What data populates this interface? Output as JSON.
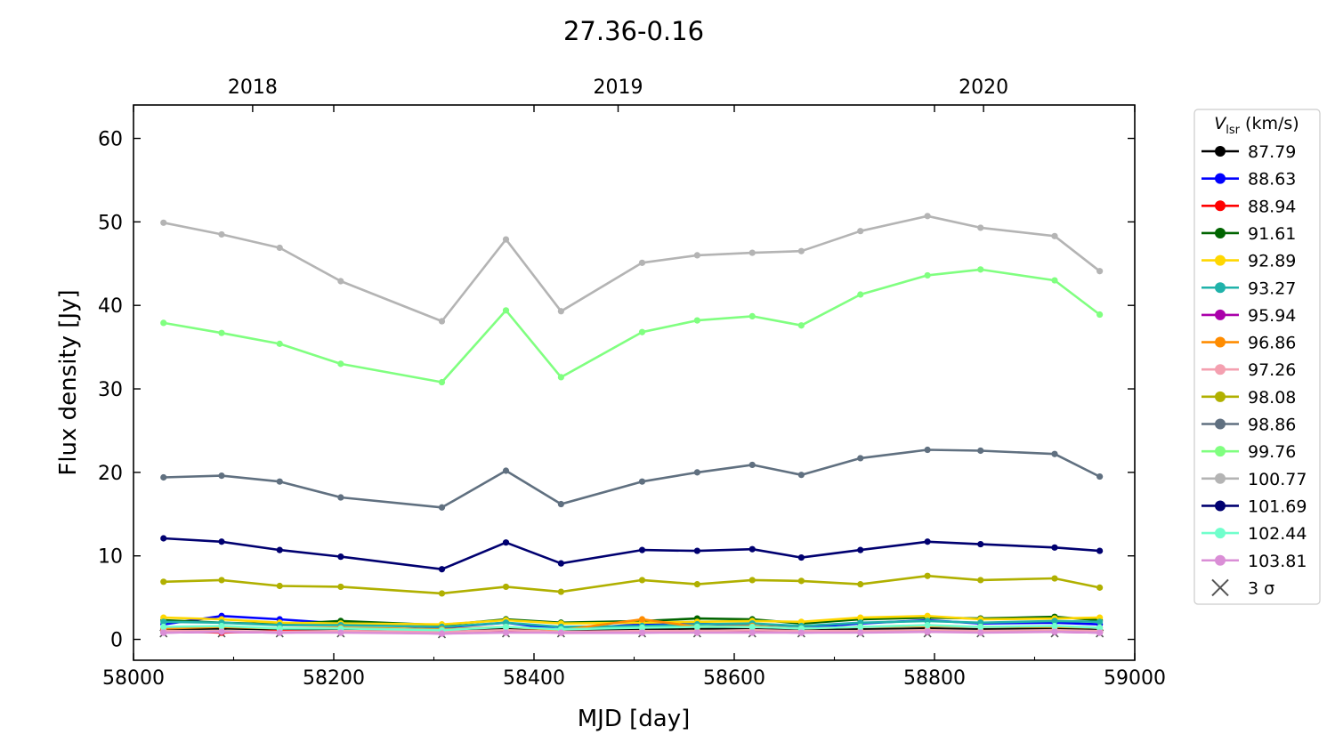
{
  "chart_data": {
    "type": "line",
    "title": "27.36-0.16",
    "xlabel": "MJD [day]",
    "ylabel": "Flux density [Jy]",
    "xlim": [
      58000,
      59000
    ],
    "ylim": [
      -2.5,
      64
    ],
    "xticks": [
      58000,
      58200,
      58400,
      58600,
      58800,
      59000
    ],
    "xtick_labels": [
      "58000",
      "58200",
      "58400",
      "58600",
      "58800",
      "59000"
    ],
    "yticks": [
      0,
      10,
      20,
      30,
      40,
      50,
      60
    ],
    "ytick_labels": [
      "0",
      "10",
      "20",
      "30",
      "40",
      "50",
      "60"
    ],
    "top_axis": {
      "ticks": [
        58119,
        58484,
        58849
      ],
      "labels": [
        "2018",
        "2019",
        "2020"
      ]
    },
    "grid": false,
    "legend": {
      "position": "outside-right",
      "title_main": "V",
      "title_sub": "lsr",
      "title_unit": " (km/s)",
      "sigma_label": "3 σ"
    },
    "x": [
      58030,
      58088,
      58146,
      58207,
      58308,
      58372,
      58427,
      58508,
      58563,
      58618,
      58667,
      58726,
      58793,
      58846,
      58920,
      58965
    ],
    "series": [
      {
        "name": "87.79",
        "color": "#000000",
        "values": [
          1.2,
          1.3,
          1.2,
          1.2,
          1.0,
          1.3,
          1.0,
          1.2,
          1.3,
          1.2,
          1.1,
          1.2,
          1.3,
          1.2,
          1.3,
          1.1
        ]
      },
      {
        "name": "88.63",
        "color": "#0000ff",
        "values": [
          1.8,
          2.8,
          2.4,
          1.9,
          1.4,
          2.0,
          1.2,
          1.8,
          1.9,
          1.6,
          1.4,
          1.9,
          2.3,
          1.9,
          2.0,
          1.8
        ]
      },
      {
        "name": "88.94",
        "color": "#ff0000",
        "values": [
          1.0,
          0.8,
          1.0,
          0.9,
          0.8,
          1.0,
          0.8,
          0.9,
          1.0,
          1.0,
          0.9,
          0.9,
          0.9,
          1.0,
          1.0,
          0.9
        ]
      },
      {
        "name": "91.61",
        "color": "#006400",
        "values": [
          2.3,
          2.0,
          1.8,
          2.2,
          1.7,
          2.4,
          2.0,
          2.2,
          2.5,
          2.4,
          1.9,
          2.4,
          2.6,
          2.5,
          2.7,
          2.3
        ]
      },
      {
        "name": "92.89",
        "color": "#ffd700",
        "values": [
          2.6,
          2.4,
          2.0,
          1.9,
          1.8,
          2.3,
          1.9,
          2.0,
          2.1,
          2.2,
          2.1,
          2.6,
          2.8,
          2.4,
          2.5,
          2.6
        ]
      },
      {
        "name": "93.27",
        "color": "#20b2aa",
        "values": [
          2.1,
          2.0,
          1.7,
          1.7,
          1.5,
          2.0,
          1.5,
          1.6,
          1.8,
          1.9,
          1.6,
          2.0,
          2.2,
          2.0,
          2.2,
          2.1
        ]
      },
      {
        "name": "95.94",
        "color": "#aa00aa",
        "values": [
          0.8,
          0.9,
          0.8,
          0.9,
          0.7,
          0.9,
          0.8,
          0.8,
          0.9,
          0.9,
          0.8,
          0.9,
          0.9,
          0.9,
          0.9,
          0.8
        ]
      },
      {
        "name": "96.86",
        "color": "#ff8c00",
        "values": [
          1.3,
          1.5,
          1.3,
          1.4,
          1.2,
          1.5,
          1.1,
          2.4,
          1.5,
          1.6,
          1.3,
          1.5,
          1.6,
          1.5,
          1.5,
          1.4
        ]
      },
      {
        "name": "97.26",
        "color": "#f4a0b0",
        "values": [
          1.0,
          1.0,
          0.9,
          1.0,
          0.9,
          1.1,
          0.9,
          1.0,
          1.0,
          1.1,
          1.0,
          1.0,
          1.1,
          1.0,
          1.1,
          1.0
        ]
      },
      {
        "name": "98.08",
        "color": "#b0b000",
        "values": [
          6.9,
          7.1,
          6.4,
          6.3,
          5.5,
          6.3,
          5.7,
          7.1,
          6.6,
          7.1,
          7.0,
          6.6,
          7.6,
          7.1,
          7.3,
          6.2
        ]
      },
      {
        "name": "98.86",
        "color": "#607080",
        "values": [
          19.4,
          19.6,
          18.9,
          17.0,
          15.8,
          20.2,
          16.2,
          18.9,
          20.0,
          20.9,
          19.7,
          21.7,
          22.7,
          22.6,
          22.2,
          19.5
        ]
      },
      {
        "name": "99.76",
        "color": "#80ff80",
        "values": [
          37.9,
          36.7,
          35.4,
          33.0,
          30.8,
          39.4,
          31.4,
          36.8,
          38.2,
          38.7,
          37.6,
          41.3,
          43.6,
          44.3,
          43.0,
          38.9
        ]
      },
      {
        "name": "100.77",
        "color": "#b4b4b4",
        "values": [
          49.9,
          48.5,
          46.9,
          42.9,
          38.1,
          47.9,
          39.3,
          45.1,
          46.0,
          46.3,
          46.5,
          48.9,
          50.7,
          49.3,
          48.3,
          44.1
        ]
      },
      {
        "name": "101.69",
        "color": "#000070",
        "values": [
          12.1,
          11.7,
          10.7,
          9.9,
          8.4,
          11.6,
          9.1,
          10.7,
          10.6,
          10.8,
          9.8,
          10.7,
          11.7,
          11.4,
          11.0,
          10.6
        ]
      },
      {
        "name": "102.44",
        "color": "#70ffcc",
        "values": [
          1.5,
          1.6,
          1.3,
          1.3,
          1.1,
          1.5,
          1.2,
          1.4,
          1.5,
          1.5,
          1.3,
          1.5,
          1.7,
          1.5,
          1.6,
          1.4
        ]
      },
      {
        "name": "103.81",
        "color": "#da8ed6",
        "values": [
          0.8,
          0.9,
          0.8,
          0.8,
          0.7,
          0.8,
          0.8,
          0.8,
          0.8,
          0.8,
          0.8,
          0.8,
          0.9,
          0.8,
          0.9,
          0.8
        ]
      }
    ],
    "sigma3": {
      "name": "3 σ",
      "marker": "x",
      "color": "#555555",
      "values": [
        0.7,
        0.7,
        0.7,
        0.7,
        0.6,
        0.7,
        0.7,
        0.7,
        0.7,
        0.7,
        0.7,
        0.7,
        0.7,
        0.7,
        0.7,
        0.7
      ]
    }
  }
}
